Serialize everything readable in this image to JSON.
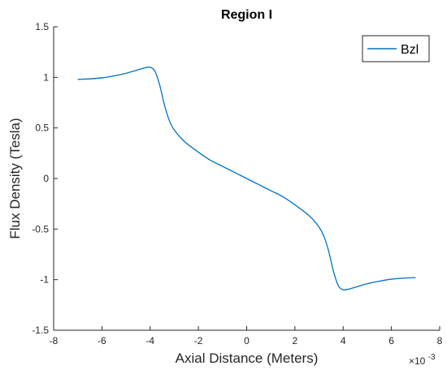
{
  "chart_data": {
    "type": "line",
    "title": "Region I",
    "xlabel": "Axial Distance (Meters)",
    "ylabel": "Flux Density (Tesla)",
    "x_exponent_label": "×10",
    "x_exponent_power": "-3",
    "xlim": [
      -8,
      8
    ],
    "ylim": [
      -1.5,
      1.5
    ],
    "x_ticks": [
      -8,
      -6,
      -4,
      -2,
      0,
      2,
      4,
      6,
      8
    ],
    "y_ticks": [
      -1.5,
      -1,
      -0.5,
      0,
      0.5,
      1,
      1.5
    ],
    "x_tick_labels": [
      "-8",
      "-6",
      "-4",
      "-2",
      "0",
      "2",
      "4",
      "6",
      "8"
    ],
    "y_tick_labels": [
      "-1.5",
      "-1",
      "-0.5",
      "0",
      "0.5",
      "1",
      "1.5"
    ],
    "grid": false,
    "legend_position": "top-right",
    "series": [
      {
        "name": "Bzl",
        "color": "#0072BD",
        "x": [
          -7,
          -6.5,
          -6,
          -5.5,
          -5,
          -4.5,
          -4.2,
          -4,
          -3.8,
          -3.6,
          -3.4,
          -3.2,
          -3,
          -2.6,
          -2,
          -1.5,
          -1,
          -0.5,
          0,
          0.5,
          1,
          1.5,
          2,
          2.6,
          3,
          3.2,
          3.4,
          3.6,
          3.8,
          4,
          4.2,
          4.5,
          5,
          5.5,
          6,
          6.5,
          7
        ],
        "y": [
          0.98,
          0.985,
          0.995,
          1.015,
          1.04,
          1.075,
          1.095,
          1.1,
          1.06,
          0.92,
          0.72,
          0.57,
          0.48,
          0.37,
          0.26,
          0.18,
          0.12,
          0.06,
          0.0,
          -0.06,
          -0.12,
          -0.18,
          -0.26,
          -0.37,
          -0.48,
          -0.57,
          -0.72,
          -0.92,
          -1.06,
          -1.1,
          -1.095,
          -1.075,
          -1.04,
          -1.015,
          -0.995,
          -0.985,
          -0.98
        ]
      }
    ]
  }
}
